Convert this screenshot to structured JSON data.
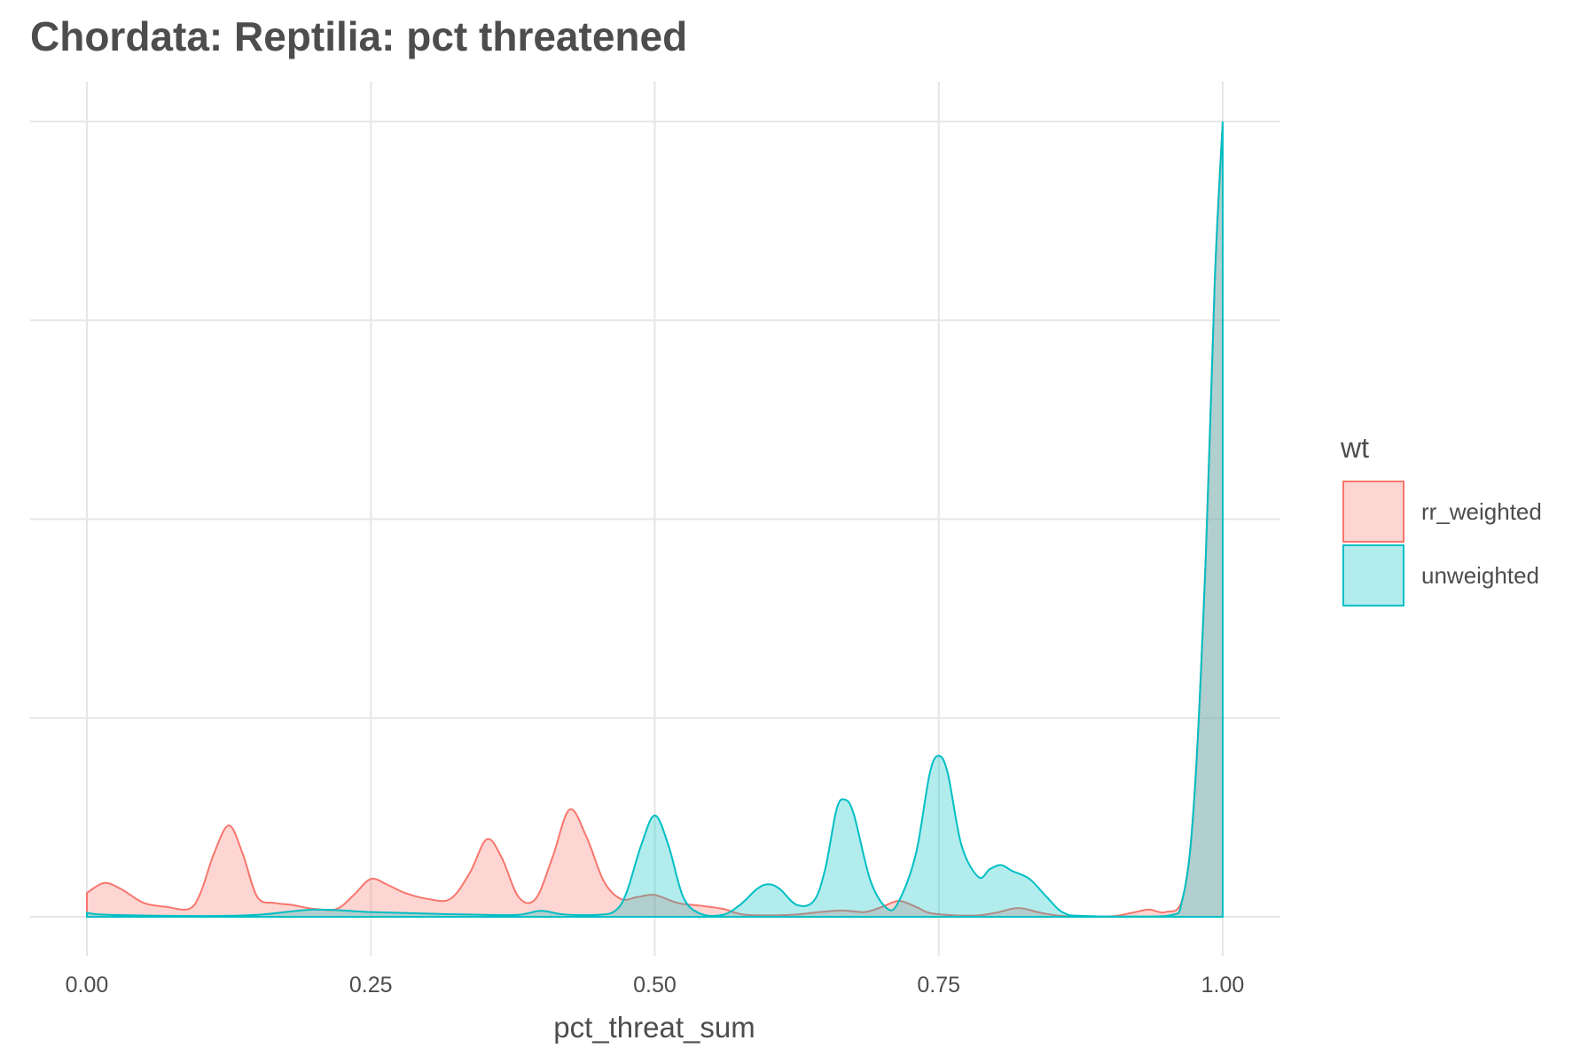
{
  "chart_data": {
    "type": "area",
    "chart_kind": "density",
    "title": "Chordata: Reptilia: pct threatened",
    "xlabel": "pct_threat_sum",
    "ylabel": "",
    "xlim": [
      0,
      1
    ],
    "ylim": [
      0,
      20
    ],
    "x_ticks": [
      {
        "value": 0.0,
        "label": "0.00"
      },
      {
        "value": 0.25,
        "label": "0.25"
      },
      {
        "value": 0.5,
        "label": "0.50"
      },
      {
        "value": 0.75,
        "label": "0.75"
      },
      {
        "value": 1.0,
        "label": "1.00"
      }
    ],
    "y_gridlines": [
      0,
      5,
      10,
      15,
      20
    ],
    "y_tick_labels_shown": false,
    "grid": true,
    "legend": {
      "title": "wt",
      "placement": "right",
      "entries": [
        {
          "name": "rr_weighted",
          "color": "#F8766D"
        },
        {
          "name": "unweighted",
          "color": "#00BFC4"
        }
      ]
    },
    "series": [
      {
        "name": "rr_weighted",
        "color": "#F8766D",
        "fill_alpha": 0.3,
        "points": [
          [
            0.0,
            0.6
          ],
          [
            0.015,
            0.85
          ],
          [
            0.03,
            0.7
          ],
          [
            0.05,
            0.35
          ],
          [
            0.07,
            0.25
          ],
          [
            0.09,
            0.2
          ],
          [
            0.1,
            0.6
          ],
          [
            0.112,
            1.6
          ],
          [
            0.125,
            2.3
          ],
          [
            0.137,
            1.6
          ],
          [
            0.15,
            0.5
          ],
          [
            0.165,
            0.35
          ],
          [
            0.18,
            0.3
          ],
          [
            0.2,
            0.2
          ],
          [
            0.22,
            0.2
          ],
          [
            0.235,
            0.55
          ],
          [
            0.25,
            0.95
          ],
          [
            0.265,
            0.8
          ],
          [
            0.28,
            0.6
          ],
          [
            0.3,
            0.45
          ],
          [
            0.32,
            0.45
          ],
          [
            0.337,
            1.1
          ],
          [
            0.352,
            1.95
          ],
          [
            0.365,
            1.5
          ],
          [
            0.38,
            0.5
          ],
          [
            0.395,
            0.45
          ],
          [
            0.41,
            1.5
          ],
          [
            0.425,
            2.7
          ],
          [
            0.44,
            2.0
          ],
          [
            0.455,
            0.9
          ],
          [
            0.47,
            0.45
          ],
          [
            0.485,
            0.5
          ],
          [
            0.5,
            0.55
          ],
          [
            0.52,
            0.35
          ],
          [
            0.54,
            0.28
          ],
          [
            0.56,
            0.2
          ],
          [
            0.58,
            0.05
          ],
          [
            0.62,
            0.05
          ],
          [
            0.645,
            0.12
          ],
          [
            0.665,
            0.16
          ],
          [
            0.685,
            0.12
          ],
          [
            0.7,
            0.25
          ],
          [
            0.715,
            0.4
          ],
          [
            0.73,
            0.25
          ],
          [
            0.745,
            0.08
          ],
          [
            0.78,
            0.03
          ],
          [
            0.8,
            0.1
          ],
          [
            0.82,
            0.22
          ],
          [
            0.84,
            0.1
          ],
          [
            0.86,
            0.02
          ],
          [
            0.9,
            0.01
          ],
          [
            0.92,
            0.1
          ],
          [
            0.935,
            0.18
          ],
          [
            0.95,
            0.12
          ],
          [
            0.965,
            0.5
          ],
          [
            0.975,
            3.0
          ],
          [
            0.985,
            9.0
          ],
          [
            0.993,
            16.0
          ],
          [
            1.0,
            20.0
          ]
        ]
      },
      {
        "name": "unweighted",
        "color": "#00BFC4",
        "fill_alpha": 0.3,
        "points": [
          [
            0.0,
            0.1
          ],
          [
            0.02,
            0.05
          ],
          [
            0.1,
            0.02
          ],
          [
            0.15,
            0.05
          ],
          [
            0.2,
            0.18
          ],
          [
            0.25,
            0.12
          ],
          [
            0.3,
            0.08
          ],
          [
            0.35,
            0.05
          ],
          [
            0.38,
            0.05
          ],
          [
            0.4,
            0.15
          ],
          [
            0.42,
            0.06
          ],
          [
            0.45,
            0.05
          ],
          [
            0.465,
            0.15
          ],
          [
            0.475,
            0.6
          ],
          [
            0.488,
            1.8
          ],
          [
            0.5,
            2.55
          ],
          [
            0.512,
            1.8
          ],
          [
            0.525,
            0.5
          ],
          [
            0.54,
            0.08
          ],
          [
            0.56,
            0.05
          ],
          [
            0.575,
            0.3
          ],
          [
            0.59,
            0.7
          ],
          [
            0.6,
            0.82
          ],
          [
            0.61,
            0.7
          ],
          [
            0.625,
            0.3
          ],
          [
            0.64,
            0.4
          ],
          [
            0.65,
            1.2
          ],
          [
            0.66,
            2.7
          ],
          [
            0.667,
            2.95
          ],
          [
            0.675,
            2.6
          ],
          [
            0.69,
            0.9
          ],
          [
            0.705,
            0.2
          ],
          [
            0.715,
            0.4
          ],
          [
            0.73,
            1.6
          ],
          [
            0.742,
            3.6
          ],
          [
            0.75,
            4.05
          ],
          [
            0.758,
            3.6
          ],
          [
            0.77,
            1.8
          ],
          [
            0.785,
            1.0
          ],
          [
            0.795,
            1.2
          ],
          [
            0.805,
            1.3
          ],
          [
            0.815,
            1.15
          ],
          [
            0.83,
            0.95
          ],
          [
            0.845,
            0.5
          ],
          [
            0.86,
            0.1
          ],
          [
            0.88,
            0.02
          ],
          [
            0.95,
            0.02
          ],
          [
            0.965,
            0.5
          ],
          [
            0.975,
            3.0
          ],
          [
            0.985,
            9.0
          ],
          [
            0.993,
            16.0
          ],
          [
            1.0,
            20.0
          ]
        ]
      }
    ]
  }
}
